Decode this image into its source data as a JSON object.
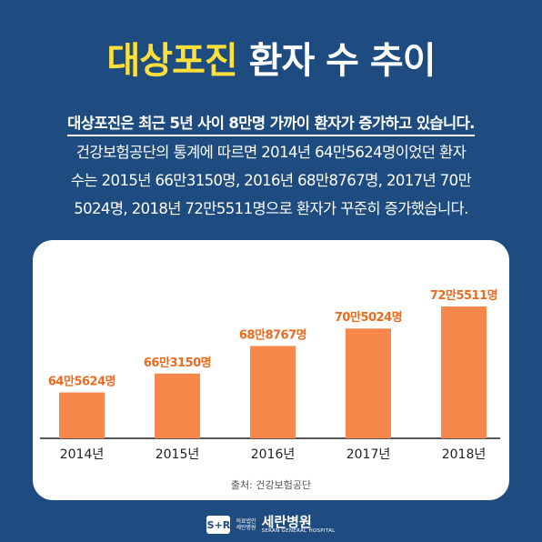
{
  "title": {
    "highlight": "대상포진",
    "rest": "환자 수 추이"
  },
  "intro": {
    "lead": "대상포진은 최근 5년 사이 8만명 가까이 환자가 증가하고 있습니다.",
    "lines": [
      "건강보험공단의 통계에 따르면 2014년 64만5624명이었던 환자",
      "수는 2015년 66만3150명, 2016년 68만8767명, 2017년 70만",
      "5024명, 2018년 72만5511명으로 환자가 꾸준히 증가했습니다."
    ]
  },
  "chart_data": {
    "type": "bar",
    "categories": [
      "2014년",
      "2015년",
      "2016년",
      "2017년",
      "2018년"
    ],
    "values": [
      645624,
      663150,
      688767,
      705024,
      725511
    ],
    "data_labels": [
      "64만5624명",
      "66만3150명",
      "68만8767명",
      "70만5024명",
      "72만5511명"
    ],
    "title": "",
    "xlabel": "",
    "ylabel": "",
    "colors": {
      "bar": "#f7874a",
      "label": "#ef6a1e",
      "tick": "#222222",
      "axis": "#222222"
    }
  },
  "source": "출처: 건강보험공단",
  "logo": {
    "mark": "S+R",
    "sub1": "의료법인",
    "sub2": "세란병원",
    "name": "세란병원",
    "english": "SERAN GENERAL HOSPITAL"
  }
}
